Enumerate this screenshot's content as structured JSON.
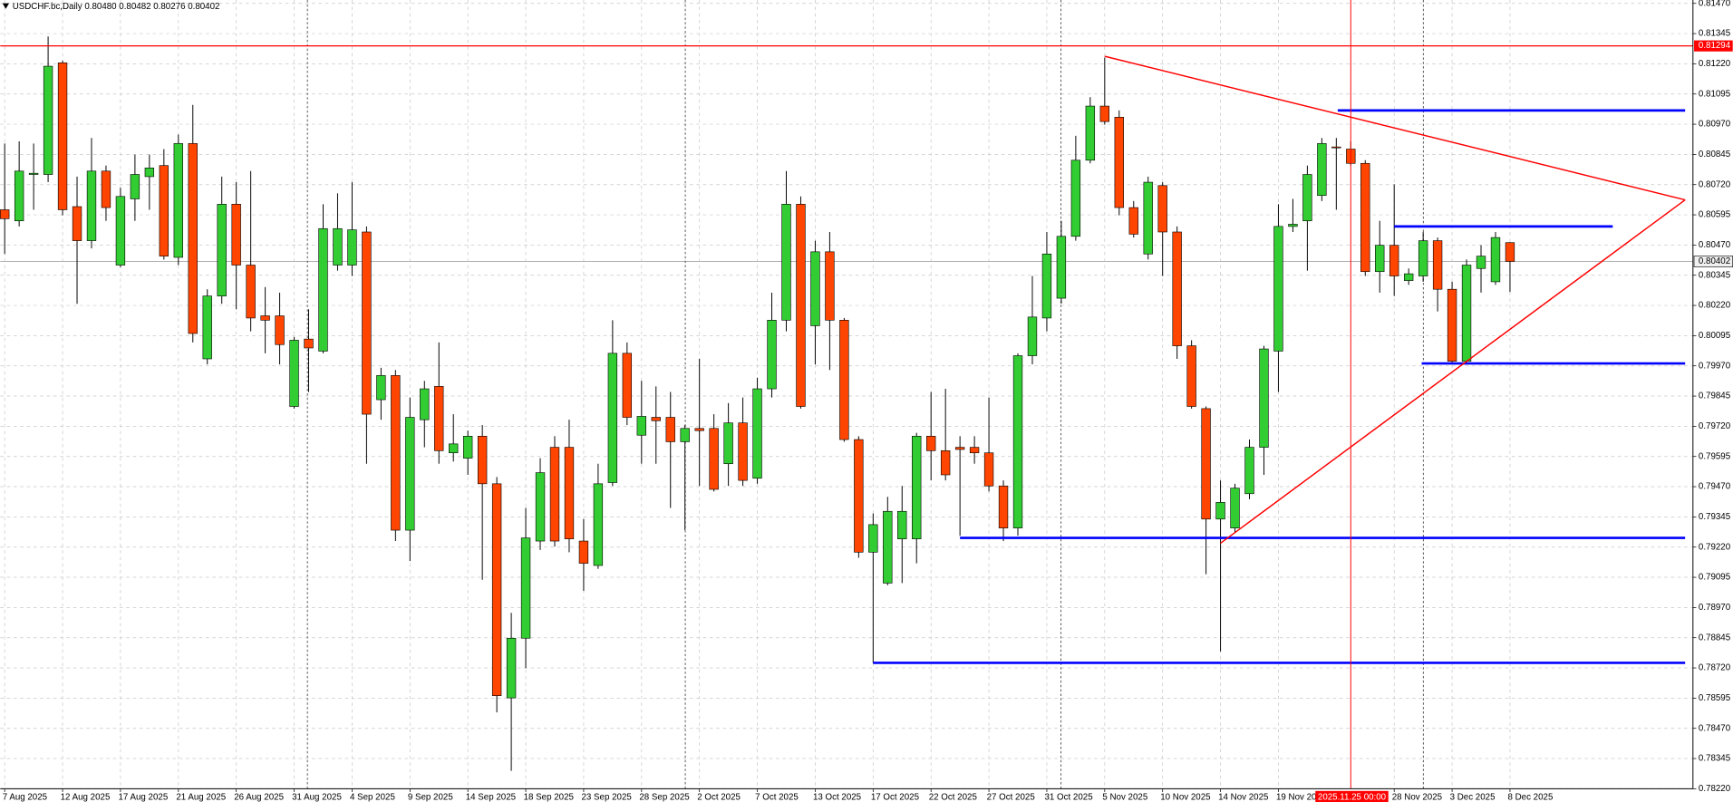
{
  "chart_data": {
    "type": "candlestick",
    "title": "USDCHF.bc,Daily  0.80480 0.80482 0.80276 0.80402",
    "up_color": "#32cd32",
    "down_color": "#ff4500",
    "grid": true,
    "categories": [
      "7 Aug 2025",
      null,
      null,
      null,
      "12 Aug 2025",
      null,
      null,
      null,
      "17 Aug 2025",
      null,
      null,
      null,
      "21 Aug 2025",
      null,
      null,
      null,
      "26 Aug 2025",
      null,
      null,
      null,
      "31 Aug 2025",
      null,
      null,
      null,
      "4 Sep 2025",
      null,
      null,
      null,
      "9 Sep 2025",
      null,
      null,
      null,
      "14 Sep 2025",
      null,
      null,
      null,
      "18 Sep 2025",
      null,
      null,
      null,
      "23 Sep 2025",
      null,
      null,
      null,
      "28 Sep 2025",
      null,
      null,
      null,
      "2 Oct 2025",
      null,
      null,
      null,
      "7 Oct 2025",
      null,
      null,
      null,
      "13 Oct 2025",
      null,
      null,
      null,
      "17 Oct 2025",
      null,
      null,
      null,
      "22 Oct 2025",
      null,
      null,
      null,
      "27 Oct 2025",
      null,
      null,
      null,
      "31 Oct 2025",
      null,
      null,
      null,
      "5 Nov 2025",
      null,
      null,
      null,
      "10 Nov 2025",
      null,
      null,
      null,
      "14 Nov 2025",
      null,
      null,
      null,
      "19 Nov 2025",
      null,
      null,
      null,
      null,
      null,
      null,
      null,
      "28 Nov 2025",
      null,
      null,
      null,
      "3 Dec 2025",
      null,
      null,
      null,
      "8 Dec 2025"
    ],
    "open": [
      0.80616,
      0.8057,
      0.80762,
      0.80762,
      0.81224,
      0.80629,
      0.80488,
      0.80776,
      0.80387,
      0.80661,
      0.80753,
      0.80799,
      0.80419,
      0.8089,
      0.79999,
      0.80259,
      0.80639,
      0.80387,
      0.80177,
      0.80177,
      0.79802,
      0.80081,
      0.80031,
      0.80387,
      0.80387,
      0.80524,
      0.7983,
      0.7993,
      0.7929,
      0.79747,
      0.79885,
      0.7961,
      0.79588,
      0.79679,
      0.79482,
      0.78596,
      0.78843,
      0.79245,
      0.79633,
      0.79633,
      0.79245,
      0.79144,
      0.79487,
      0.80022,
      0.79683,
      0.79757,
      0.79757,
      0.79656,
      0.79711,
      0.79711,
      0.79565,
      0.79734,
      0.79505,
      0.79875,
      0.80159,
      0.80639,
      0.80136,
      0.80442,
      0.80159,
      0.79665,
      0.79199,
      0.79071,
      0.79254,
      0.79254,
      0.79679,
      0.79619,
      0.79633,
      0.79633,
      0.7961,
      0.79473,
      0.79299,
      0.80012,
      0.80168,
      0.8025,
      0.80506,
      0.80821,
      0.81045,
      0.80999,
      0.80625,
      0.80433,
      0.80716,
      0.80524,
      0.80053,
      0.79793,
      0.79336,
      0.79299,
      0.79441,
      0.79633,
      0.80031,
      0.80547,
      0.8057,
      0.80675,
      0.80876,
      0.80867,
      0.80808,
      0.8036,
      0.80469,
      0.80323,
      0.80342,
      0.80488,
      0.80287,
      0.79989,
      0.80373,
      0.80318,
      0.8048
    ],
    "high": [
      0.8089,
      0.80899,
      0.8089,
      0.81333,
      0.81233,
      0.80753,
      0.80913,
      0.80799,
      0.80707,
      0.80844,
      0.80844,
      0.80867,
      0.80927,
      0.8105,
      0.80287,
      0.80753,
      0.8073,
      0.80776,
      0.80296,
      0.80273,
      0.8009,
      0.80204,
      0.80639,
      0.80684,
      0.8073,
      0.80547,
      0.79962,
      0.79953,
      0.79839,
      0.79908,
      0.80067,
      0.7977,
      0.79702,
      0.79725,
      0.7951,
      0.78948,
      0.79382,
      0.79588,
      0.79679,
      0.79747,
      0.79336,
      0.79565,
      0.80159,
      0.80067,
      0.79908,
      0.79885,
      0.79862,
      0.79725,
      0.79999,
      0.7977,
      0.79816,
      0.79839,
      0.79921,
      0.80273,
      0.80776,
      0.80671,
      0.80488,
      0.80524,
      0.80168,
      0.79679,
      0.79359,
      0.79428,
      0.79473,
      0.79693,
      0.79862,
      0.79875,
      0.79679,
      0.79679,
      0.79839,
      0.79496,
      0.80022,
      0.80342,
      0.80524,
      0.8057,
      0.80922,
      0.81082,
      0.81246,
      0.81027,
      0.80652,
      0.80753,
      0.8073,
      0.80547,
      0.80076,
      0.79802,
      0.79496,
      0.79482,
      0.79665,
      0.80053,
      0.80639,
      0.80661,
      0.80799,
      0.80913,
      0.80913,
      0.80899,
      0.80821,
      0.8057,
      0.80721,
      0.80373,
      0.80524,
      0.80501,
      0.80318,
      0.8041,
      0.80469,
      0.80524,
      0.80482
    ],
    "low": [
      0.80433,
      0.80547,
      0.80616,
      0.8073,
      0.80593,
      0.80227,
      0.80456,
      0.8057,
      0.80378,
      0.8057,
      0.80616,
      0.8041,
      0.80387,
      0.80067,
      0.79976,
      0.80227,
      0.80204,
      0.80113,
      0.80022,
      0.79976,
      0.79793,
      0.79862,
      0.80022,
      0.80364,
      0.80342,
      0.79565,
      0.79747,
      0.79245,
      0.79162,
      0.79633,
      0.79565,
      0.79574,
      0.79519,
      0.79085,
      0.78536,
      0.78294,
      0.78719,
      0.79208,
      0.79222,
      0.79199,
      0.79039,
      0.7913,
      0.79473,
      0.79725,
      0.79565,
      0.79565,
      0.79382,
      0.7929,
      0.79473,
      0.7945,
      0.79473,
      0.79473,
      0.79482,
      0.79839,
      0.80113,
      0.79793,
      0.79976,
      0.79953,
      0.79656,
      0.79176,
      0.78741,
      0.79062,
      0.79071,
      0.79153,
      0.79496,
      0.79496,
      0.79267,
      0.79565,
      0.7945,
      0.79245,
      0.79267,
      0.79976,
      0.80113,
      0.80227,
      0.80488,
      0.80808,
      0.80968,
      0.80593,
      0.80501,
      0.8041,
      0.80342,
      0.79999,
      0.79793,
      0.79108,
      0.78788,
      0.79281,
      0.79418,
      0.79519,
      0.79862,
      0.80524,
      0.80364,
      0.80652,
      0.80616,
      0.80799,
      0.80342,
      0.80273,
      0.80259,
      0.80305,
      0.80318,
      0.80195,
      0.79976,
      0.79976,
      0.80273,
      0.80305,
      0.80276
    ],
    "close": [
      0.80579,
      0.80776,
      0.80767,
      0.8121,
      0.80616,
      0.80488,
      0.80776,
      0.80625,
      0.80671,
      0.80762,
      0.80789,
      0.80424,
      0.8089,
      0.80104,
      0.80259,
      0.80639,
      0.80387,
      0.80168,
      0.80159,
      0.80058,
      0.80076,
      0.80044,
      0.80538,
      0.80538,
      0.80533,
      0.7977,
      0.7993,
      0.7929,
      0.79757,
      0.79875,
      0.79619,
      0.79647,
      0.79679,
      0.79482,
      0.78605,
      0.78843,
      0.79258,
      0.79528,
      0.79245,
      0.79254,
      0.79153,
      0.79482,
      0.80022,
      0.79757,
      0.79761,
      0.79743,
      0.79656,
      0.79711,
      0.79702,
      0.79459,
      0.79734,
      0.79496,
      0.79875,
      0.80159,
      0.80639,
      0.79802,
      0.80442,
      0.80159,
      0.79665,
      0.79199,
      0.79313,
      0.79368,
      0.79368,
      0.79679,
      0.79619,
      0.79519,
      0.79624,
      0.7961,
      0.79473,
      0.79299,
      0.80012,
      0.80172,
      0.80433,
      0.80506,
      0.80821,
      0.81045,
      0.80981,
      0.80625,
      0.80515,
      0.8073,
      0.80524,
      0.80053,
      0.79802,
      0.79336,
      0.79405,
      0.79464,
      0.79633,
      0.8004,
      0.80547,
      0.80556,
      0.80762,
      0.8089,
      0.80872,
      0.80808,
      0.8036,
      0.80469,
      0.80342,
      0.80351,
      0.80488,
      0.80287,
      0.79989,
      0.80387,
      0.80424,
      0.80501,
      0.80402
    ],
    "ylim": [
      0.7822,
      0.81484
    ],
    "yticks": [
      {
        "value": 0.8147,
        "label": "0.81470"
      },
      0.81345,
      {
        "value": 0.8122,
        "label": "0.81220"
      },
      0.81095,
      {
        "value": 0.8097,
        "label": "0.80970"
      },
      0.80845,
      {
        "value": 0.8072,
        "label": "0.80720"
      },
      0.80595,
      {
        "value": 0.8047,
        "label": "0.80470"
      },
      0.80345,
      {
        "value": 0.8022,
        "label": "0.80220"
      },
      0.80095,
      {
        "value": 0.7997,
        "label": "0.79970"
      },
      0.79845,
      {
        "value": 0.7972,
        "label": "0.79720"
      },
      0.79595,
      {
        "value": 0.7947,
        "label": "0.79470"
      },
      0.79345,
      {
        "value": 0.7922,
        "label": "0.79220"
      },
      0.79095,
      {
        "value": 0.7897,
        "label": "0.78970"
      },
      0.78845,
      {
        "value": 0.7872,
        "label": "0.78720"
      },
      0.78595,
      {
        "value": 0.7847,
        "label": "0.78470"
      },
      0.78345,
      {
        "value": 0.7822,
        "label": "0.78220"
      }
    ],
    "price_line": 0.81294,
    "price_line_color": "#ff0000",
    "last_price": 0.80402,
    "hlines_color": "#0000ff",
    "hlines": [
      {
        "price": 0.81027,
        "from": 92.1,
        "to": 116.1
      },
      {
        "price": 0.80547,
        "from": 96.0,
        "to": 111.1
      },
      {
        "price": 0.7998,
        "from": 97.9,
        "to": 116.1
      },
      {
        "price": 0.79258,
        "from": 66.0,
        "to": 116.1
      },
      {
        "price": 0.78741,
        "from": 60.0,
        "to": 116.1
      }
    ],
    "trendlines_color": "#ff0000",
    "trendlines": [
      {
        "x": [
          76.0,
          116.1
        ],
        "y": [
          0.81251,
          0.80657
        ]
      },
      {
        "x": [
          84.0,
          116.1
        ],
        "y": [
          0.79236,
          0.80657
        ]
      }
    ],
    "crosshair": {
      "index": 93,
      "label": "2025.11.25 00:00"
    }
  }
}
